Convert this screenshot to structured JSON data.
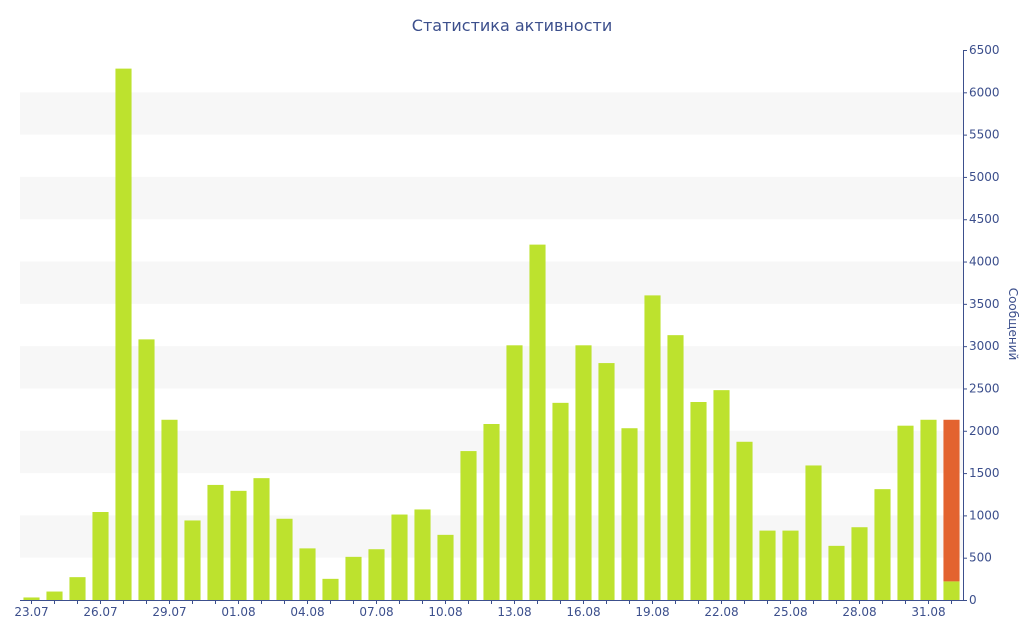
{
  "chart_data": {
    "type": "bar",
    "title": "Статистика активности",
    "xlabel": "",
    "ylabel": "Сообщений",
    "y_axis_side": "right",
    "ylim": [
      0,
      6500
    ],
    "ytick_step": 500,
    "categories": [
      "23.07",
      "24.07",
      "25.07",
      "26.07",
      "27.07",
      "28.07",
      "29.07",
      "30.07",
      "31.07",
      "01.08",
      "02.08",
      "03.08",
      "04.08",
      "05.08",
      "06.08",
      "07.08",
      "08.08",
      "09.08",
      "10.08",
      "11.08",
      "12.08",
      "13.08",
      "14.08",
      "15.08",
      "16.08",
      "17.08",
      "18.08",
      "19.08",
      "20.08",
      "21.08",
      "22.08",
      "23.08",
      "24.08",
      "25.08",
      "26.08",
      "27.08",
      "28.08",
      "29.08",
      "30.08",
      "31.08",
      "01.09"
    ],
    "x_tick_labels": [
      "23.07",
      "26.07",
      "29.07",
      "01.08",
      "04.08",
      "07.08",
      "10.08",
      "13.08",
      "16.08",
      "19.08",
      "22.08",
      "25.08",
      "28.08",
      "31.08"
    ],
    "series": [
      {
        "color": "#bde22e",
        "values": [
          30,
          100,
          270,
          1040,
          6280,
          3080,
          2130,
          940,
          1360,
          1290,
          1440,
          960,
          610,
          250,
          510,
          600,
          1010,
          1070,
          770,
          1760,
          2080,
          3010,
          4200,
          2330,
          3010,
          2800,
          2030,
          3600,
          3130,
          2340,
          2480,
          1870,
          820,
          820,
          1590,
          640,
          860,
          1310,
          2060,
          2130,
          220
        ]
      },
      {
        "color": "#e3632f",
        "values": [
          0,
          0,
          0,
          0,
          0,
          0,
          0,
          0,
          0,
          0,
          0,
          0,
          0,
          0,
          0,
          0,
          0,
          0,
          0,
          0,
          0,
          0,
          0,
          0,
          0,
          0,
          0,
          0,
          0,
          0,
          0,
          0,
          0,
          0,
          0,
          0,
          0,
          0,
          0,
          0,
          1910
        ]
      }
    ],
    "grid": "horizontal-bands",
    "legend": "none",
    "colors": {
      "band": "#f7f7f7",
      "axis": "#3c4f8c",
      "text": "#3c4f8c"
    }
  }
}
